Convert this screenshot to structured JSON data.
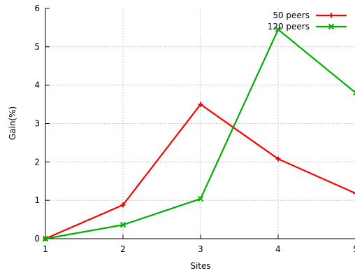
{
  "chart_data": {
    "type": "line",
    "title": "",
    "xlabel": "Sites",
    "ylabel": "Gain(%)",
    "xlim": [
      1,
      5
    ],
    "ylim": [
      0,
      6
    ],
    "xticks": [
      1,
      2,
      3,
      4,
      5
    ],
    "yticks": [
      0,
      1,
      2,
      3,
      4,
      5,
      6
    ],
    "grid": true,
    "legend_position": "top-right",
    "series": [
      {
        "name": "50 peers",
        "color": "#ff0000",
        "marker": "plus",
        "x": [
          1,
          2,
          3,
          4,
          5
        ],
        "y": [
          0.0,
          0.88,
          3.5,
          2.08,
          1.18
        ]
      },
      {
        "name": "120 peers",
        "color": "#00b000",
        "marker": "cross",
        "x": [
          1,
          2,
          3,
          4,
          5
        ],
        "y": [
          0.0,
          0.36,
          1.04,
          5.45,
          3.8
        ]
      }
    ]
  }
}
